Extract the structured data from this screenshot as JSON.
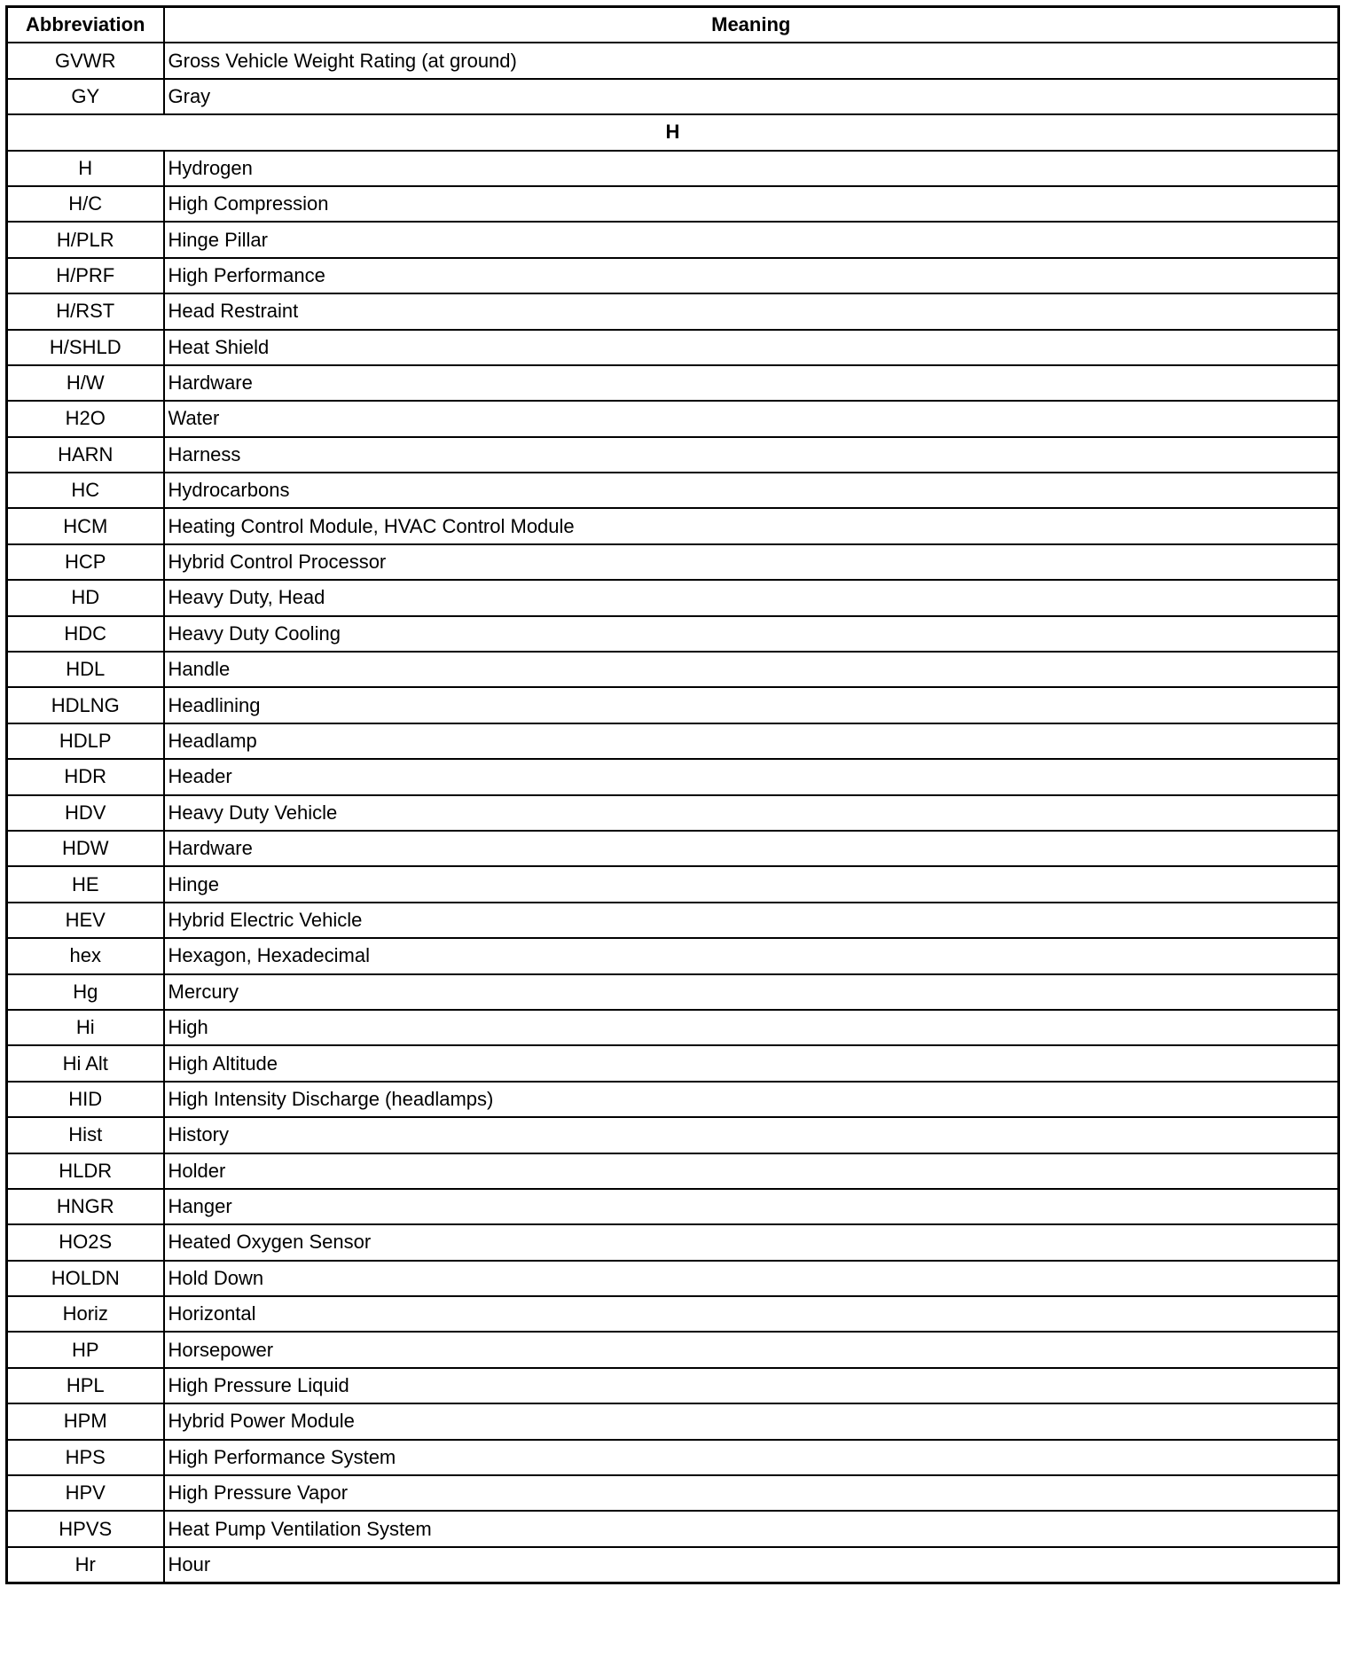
{
  "table": {
    "headers": {
      "abbreviation": "Abbreviation",
      "meaning": "Meaning"
    },
    "rows_before": [
      {
        "abbr": "GVWR",
        "meaning": "Gross Vehicle Weight Rating (at ground)"
      },
      {
        "abbr": "GY",
        "meaning": "Gray"
      }
    ],
    "section": "H",
    "rows": [
      {
        "abbr": "H",
        "meaning": "Hydrogen"
      },
      {
        "abbr": "H/C",
        "meaning": "High Compression"
      },
      {
        "abbr": "H/PLR",
        "meaning": "Hinge Pillar"
      },
      {
        "abbr": "H/PRF",
        "meaning": "High Performance"
      },
      {
        "abbr": "H/RST",
        "meaning": "Head Restraint"
      },
      {
        "abbr": "H/SHLD",
        "meaning": "Heat Shield"
      },
      {
        "abbr": "H/W",
        "meaning": "Hardware"
      },
      {
        "abbr": "H2O",
        "meaning": "Water"
      },
      {
        "abbr": "HARN",
        "meaning": "Harness"
      },
      {
        "abbr": "HC",
        "meaning": "Hydrocarbons"
      },
      {
        "abbr": "HCM",
        "meaning": "Heating Control Module, HVAC Control Module"
      },
      {
        "abbr": "HCP",
        "meaning": "Hybrid Control Processor"
      },
      {
        "abbr": "HD",
        "meaning": "Heavy Duty, Head"
      },
      {
        "abbr": "HDC",
        "meaning": "Heavy Duty Cooling"
      },
      {
        "abbr": "HDL",
        "meaning": "Handle"
      },
      {
        "abbr": "HDLNG",
        "meaning": "Headlining"
      },
      {
        "abbr": "HDLP",
        "meaning": "Headlamp"
      },
      {
        "abbr": "HDR",
        "meaning": "Header"
      },
      {
        "abbr": "HDV",
        "meaning": "Heavy Duty Vehicle"
      },
      {
        "abbr": "HDW",
        "meaning": "Hardware"
      },
      {
        "abbr": "HE",
        "meaning": "Hinge"
      },
      {
        "abbr": "HEV",
        "meaning": "Hybrid Electric Vehicle"
      },
      {
        "abbr": "hex",
        "meaning": "Hexagon, Hexadecimal"
      },
      {
        "abbr": "Hg",
        "meaning": "Mercury"
      },
      {
        "abbr": "Hi",
        "meaning": "High"
      },
      {
        "abbr": "Hi Alt",
        "meaning": "High Altitude"
      },
      {
        "abbr": "HID",
        "meaning": "High Intensity Discharge (headlamps)"
      },
      {
        "abbr": "Hist",
        "meaning": "History"
      },
      {
        "abbr": "HLDR",
        "meaning": "Holder"
      },
      {
        "abbr": "HNGR",
        "meaning": "Hanger"
      },
      {
        "abbr": "HO2S",
        "meaning": "Heated Oxygen Sensor"
      },
      {
        "abbr": "HOLDN",
        "meaning": "Hold Down"
      },
      {
        "abbr": "Horiz",
        "meaning": "Horizontal"
      },
      {
        "abbr": "HP",
        "meaning": "Horsepower"
      },
      {
        "abbr": "HPL",
        "meaning": "High Pressure Liquid"
      },
      {
        "abbr": "HPM",
        "meaning": "Hybrid Power Module"
      },
      {
        "abbr": "HPS",
        "meaning": "High Performance System"
      },
      {
        "abbr": "HPV",
        "meaning": "High Pressure Vapor"
      },
      {
        "abbr": "HPVS",
        "meaning": "Heat Pump Ventilation System"
      },
      {
        "abbr": "Hr",
        "meaning": "Hour"
      }
    ]
  }
}
